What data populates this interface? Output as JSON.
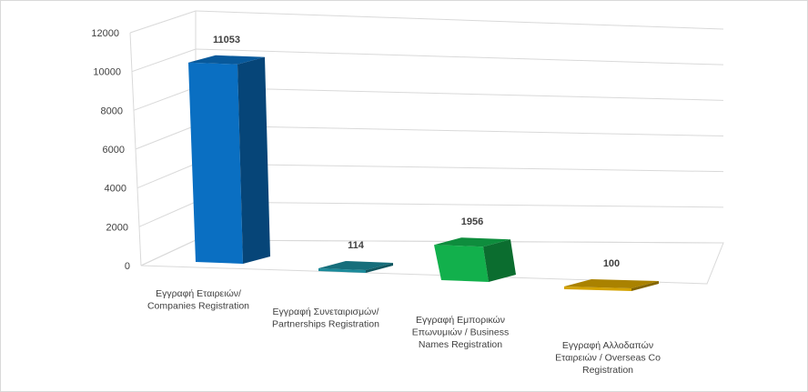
{
  "chart_data": {
    "type": "bar",
    "style": "3d-column",
    "categories": [
      [
        "Εγγραφή Εταιρειών/",
        "Companies Registration"
      ],
      [
        "Εγγραφή Συνεταιρισμών/",
        "Partnerships Registration"
      ],
      [
        "Εγγραφή Εμπορικών",
        "Επωνυμιών / Business",
        "Names Registration"
      ],
      [
        "Εγγραφή Αλλοδαπών",
        "Εταιρειών / Overseas Co",
        "Registration"
      ]
    ],
    "values": [
      11053,
      114,
      1956,
      100
    ],
    "data_labels": [
      "11053",
      "114",
      "1956",
      "100"
    ],
    "colors": [
      "#0a6fc2",
      "#1b8a9a",
      "#12b04c",
      "#d4a300"
    ],
    "ylim": [
      0,
      12000
    ],
    "yticks": [
      "0",
      "2000",
      "4000",
      "6000",
      "8000",
      "10000",
      "12000"
    ],
    "grid": true,
    "legend": "none",
    "title": "",
    "xlabel": "",
    "ylabel": ""
  }
}
